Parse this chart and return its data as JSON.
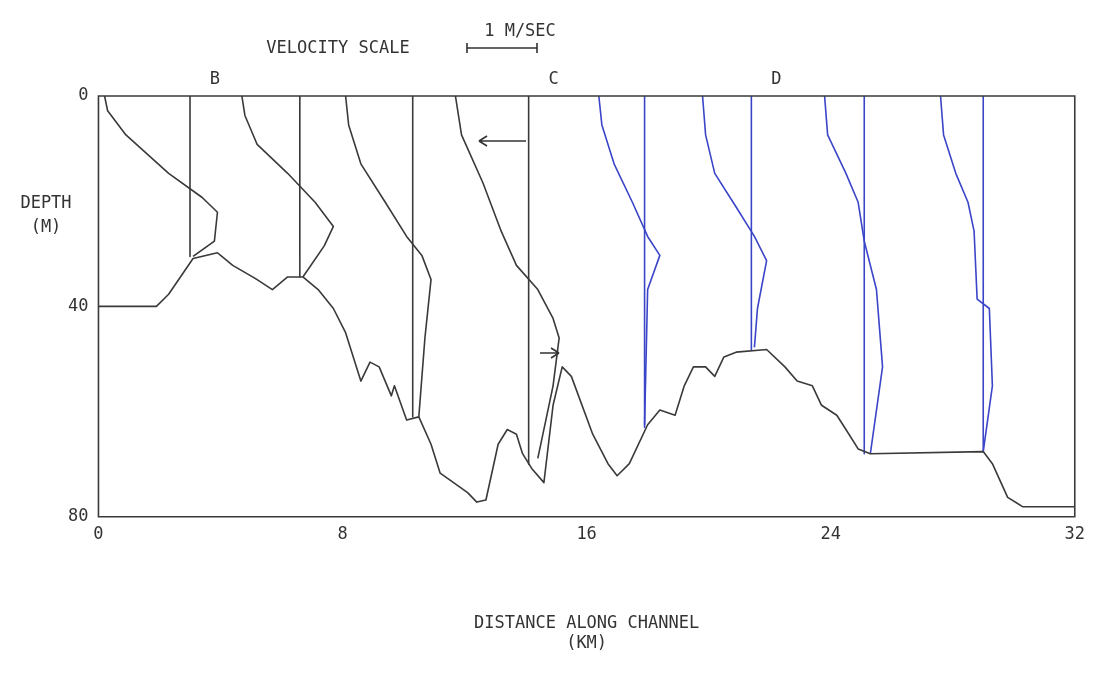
{
  "chart_data": {
    "type": "line",
    "xlabel": "DISTANCE ALONG CHANNEL\n(KM)",
    "ylabel": "DEPTH\n(M)",
    "xlim": [
      0,
      32
    ],
    "xticks": [
      0,
      8,
      16,
      24,
      32
    ],
    "ylim": [
      80,
      0
    ],
    "yticks": [
      0,
      40,
      80
    ],
    "grid": false,
    "legend": false,
    "marker": "none",
    "annotations": [
      "VELOCITY SCALE",
      "1 M/SEC",
      {
        "text": "B",
        "x": 3.0,
        "y": 0
      },
      {
        "text": "C",
        "x": 14.1,
        "y": 0
      },
      {
        "text": "D",
        "x": 21.4,
        "y": 0
      }
    ],
    "series": [
      {
        "color": "#3a3a3a",
        "x": [
          0,
          1.9,
          2.3,
          3.1,
          3.9,
          4.4,
          5.2,
          5.7,
          6.2,
          6.7,
          7.2,
          7.7,
          8.1,
          8.6,
          8.9,
          9.2,
          9.6,
          9.7,
          10.1,
          10.5,
          10.9,
          11.2,
          12.1,
          12.4,
          12.7,
          13.1,
          13.4,
          13.7,
          13.9,
          14.2,
          14.6,
          14.9,
          15.2,
          15.5,
          16.2,
          16.7,
          17.0,
          17.4,
          18.0,
          18.4,
          18.9,
          19.2,
          19.5,
          19.9,
          20.2,
          20.5,
          20.9,
          21.9,
          22.5,
          22.9,
          23.4,
          23.7,
          24.2,
          24.5,
          24.9,
          25.3,
          29.0,
          29.3,
          29.8,
          30.3,
          32
        ],
        "values": [
          40,
          40,
          37.7,
          30.9,
          29.8,
          32.2,
          34.9,
          36.8,
          34.4,
          34.4,
          36.8,
          40.4,
          45,
          54.2,
          50.6,
          51.5,
          57,
          55.1,
          61.6,
          61,
          66.2,
          71.7,
          75.4,
          77.2,
          76.8,
          66.2,
          63.4,
          64.3,
          68,
          70.8,
          73.5,
          58.8,
          51.5,
          53.3,
          64.3,
          69.9,
          72.2,
          69.9,
          62.5,
          59.7,
          60.7,
          55.1,
          51.5,
          51.5,
          53.3,
          49.6,
          48.7,
          48.2,
          51.5,
          54.2,
          55.1,
          58.8,
          60.7,
          63.4,
          67.1,
          68,
          67.6,
          69.9,
          76.3,
          78.1,
          78.1
        ]
      },
      {
        "color": "#3a3a3a",
        "x": [
          3.0,
          3.0,
          null,
          6.6,
          6.6,
          null,
          10.3,
          10.3,
          null,
          14.1,
          14.1
        ],
        "values": [
          0,
          30.5,
          null,
          0,
          34.4,
          null,
          0,
          61,
          null,
          0,
          70
        ]
      },
      {
        "color": "#3a45c8",
        "x": [
          17.9,
          17.9,
          null,
          21.4,
          21.4,
          null,
          25.1,
          25.1,
          null,
          29.0,
          29.0
        ],
        "values": [
          0,
          63,
          null,
          0,
          48.2,
          null,
          0,
          68,
          null,
          0,
          67.6
        ]
      },
      {
        "color": "#3a3a3a",
        "x": [
          0.2,
          0.3,
          0.9,
          2.3,
          3.4,
          3.9,
          3.8,
          3.1
        ],
        "values": [
          0,
          2.8,
          7.4,
          14.7,
          19.3,
          22.1,
          27.6,
          30.5
        ]
      },
      {
        "color": "#3a3a3a",
        "x": [
          4.7,
          4.8,
          5.2,
          6.2,
          7.1,
          7.7,
          7.4,
          6.7
        ],
        "values": [
          0,
          3.7,
          9.2,
          14.7,
          20.2,
          24.8,
          28.5,
          34.4
        ]
      },
      {
        "color": "#3a3a3a",
        "x": [
          8.1,
          8.2,
          8.6,
          9.4,
          10.1,
          10.6,
          10.9,
          10.7,
          10.5
        ],
        "values": [
          0,
          5.5,
          12.9,
          20.2,
          26.7,
          30.3,
          34.9,
          46,
          61
        ]
      },
      {
        "color": "#3a3a3a",
        "x": [
          11.7,
          11.9,
          12.6,
          13.2,
          13.7,
          14.4,
          14.9,
          15.1,
          14.9,
          14.4
        ],
        "values": [
          0,
          7.4,
          16.5,
          25.7,
          32.2,
          36.8,
          42.3,
          46,
          55.1,
          68.9
        ]
      },
      {
        "color": "#3a45c8",
        "x": [
          16.4,
          16.5,
          16.9,
          17.5,
          18.0,
          18.4,
          18.0,
          17.9
        ],
        "values": [
          0,
          5.5,
          12.9,
          20.2,
          26.7,
          30.3,
          36.8,
          62.5
        ]
      },
      {
        "color": "#3a45c8",
        "x": [
          19.8,
          19.9,
          20.2,
          20.9,
          21.5,
          21.9,
          21.6,
          21.5
        ],
        "values": [
          0,
          7.4,
          14.7,
          21.1,
          26.7,
          31.3,
          40.4,
          47.8
        ]
      },
      {
        "color": "#3a45c8",
        "x": [
          23.8,
          23.9,
          24.5,
          24.9,
          25.1,
          25.5,
          25.7,
          25.3
        ],
        "values": [
          0,
          7.4,
          14.7,
          20.2,
          27.6,
          36.8,
          51.5,
          68
        ]
      },
      {
        "color": "#3a45c8",
        "x": [
          27.6,
          27.7,
          28.1,
          28.5,
          28.7,
          28.8,
          29.2,
          29.3,
          29.0
        ],
        "values": [
          0,
          7.4,
          14.7,
          20.2,
          25.7,
          38.6,
          40.4,
          55.1,
          67.6
        ]
      }
    ]
  }
}
